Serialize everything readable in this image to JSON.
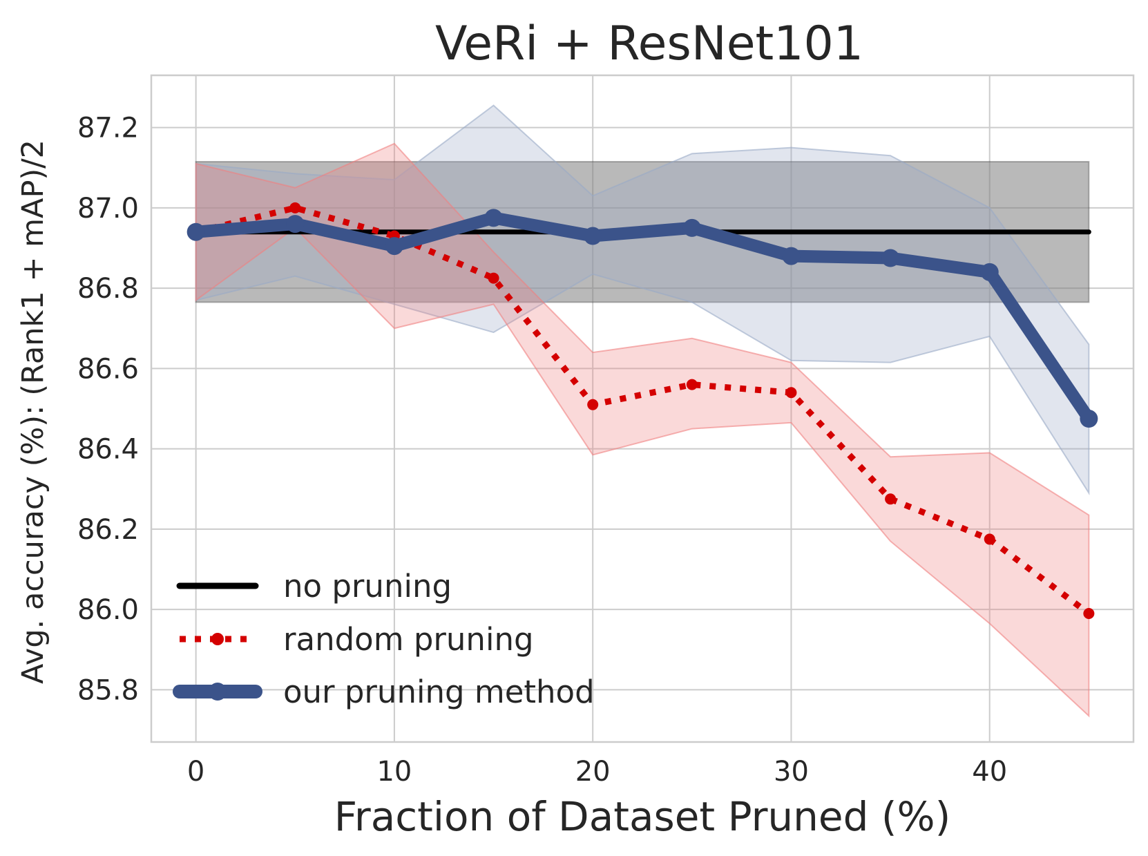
{
  "chart_data": {
    "type": "line",
    "title": "VeRi + ResNet101",
    "xlabel": "Fraction of Dataset Pruned (%)",
    "ylabel": "Avg. accuracy (%): (Rank1 + mAP)/2",
    "xlim": [
      -2.25,
      47.25
    ],
    "ylim": [
      85.67,
      87.33
    ],
    "xticks": [
      0,
      10,
      20,
      30,
      40
    ],
    "xtick_labels": [
      "0",
      "10",
      "20",
      "30",
      "40"
    ],
    "yticks": [
      85.8,
      86.0,
      86.2,
      86.4,
      86.6,
      86.8,
      87.0,
      87.2
    ],
    "ytick_labels": [
      "85.8",
      "86.0",
      "86.2",
      "86.4",
      "86.6",
      "86.8",
      "87.0",
      "87.2"
    ],
    "grid": true,
    "legend_position": "lower-left",
    "baseline": {
      "name": "no pruning",
      "color": "#000000",
      "value": 86.94,
      "band": [
        86.765,
        87.115
      ],
      "band_color": "#7f7f7f",
      "x_range": [
        0,
        45
      ]
    },
    "series": [
      {
        "name": "random pruning",
        "color": "#d40000",
        "band_color": "#f08080",
        "style": "dotted",
        "x": [
          0,
          5,
          10,
          15,
          20,
          25,
          30,
          35,
          40,
          45
        ],
        "values": [
          86.94,
          87.0,
          86.93,
          86.825,
          86.51,
          86.56,
          86.54,
          86.275,
          86.175,
          85.99
        ],
        "lower": [
          86.77,
          86.95,
          86.7,
          86.76,
          86.385,
          86.45,
          86.465,
          86.17,
          85.965,
          85.735
        ],
        "upper": [
          87.11,
          87.05,
          87.16,
          86.89,
          86.64,
          86.675,
          86.615,
          86.38,
          86.39,
          86.235
        ]
      },
      {
        "name": "our pruning method",
        "color": "#3b538a",
        "band_color": "#9aaac7",
        "style": "solid",
        "x": [
          0,
          5,
          10,
          15,
          20,
          25,
          30,
          35,
          40,
          45
        ],
        "values": [
          86.94,
          86.96,
          86.905,
          86.975,
          86.93,
          86.95,
          86.88,
          86.875,
          86.84,
          86.475
        ],
        "lower": [
          86.77,
          86.83,
          86.76,
          86.69,
          86.835,
          86.765,
          86.62,
          86.615,
          86.68,
          86.29
        ],
        "upper": [
          87.11,
          87.085,
          87.07,
          87.255,
          87.03,
          87.135,
          87.15,
          87.13,
          87.0,
          86.66
        ]
      }
    ]
  }
}
